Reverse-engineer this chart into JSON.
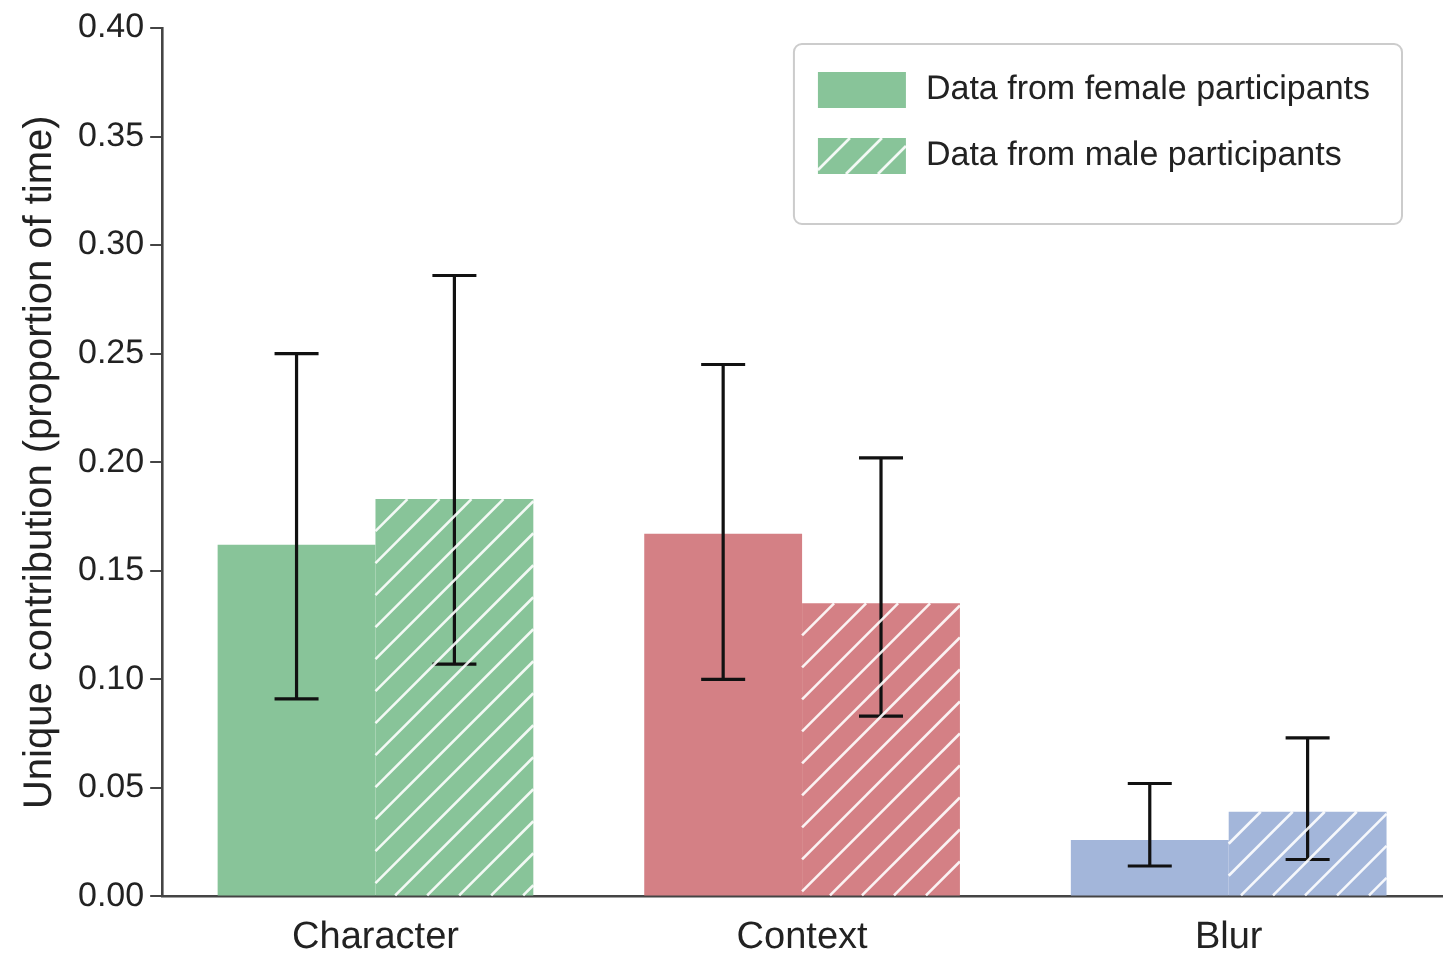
{
  "chart_data": {
    "type": "bar",
    "ylabel": "Unique contribution (proportion of time)",
    "categories": [
      "Character",
      "Context",
      "Blur"
    ],
    "series": [
      {
        "name": "Data from female participants",
        "color": "#88c499",
        "colors": [
          "#88c499",
          "#d48085",
          "#a3b6da"
        ],
        "values": [
          0.162,
          0.167,
          0.026
        ],
        "errors": [
          [
            0.091,
            0.25
          ],
          [
            0.1,
            0.245
          ],
          [
            0.014,
            0.052
          ]
        ]
      },
      {
        "name": "Data from male participants",
        "color": "#88c499",
        "colors": [
          "#88c499",
          "#d48085",
          "#a3b6da"
        ],
        "values": [
          0.183,
          0.135,
          0.039
        ],
        "errors": [
          [
            0.107,
            0.286
          ],
          [
            0.083,
            0.202
          ],
          [
            0.017,
            0.073
          ]
        ]
      }
    ],
    "ylim": [
      0,
      0.4
    ],
    "yticks": [
      {
        "value": 0,
        "label": "0.00"
      },
      {
        "value": 0.05,
        "label": "0.05"
      },
      {
        "value": 0.1,
        "label": "0.10"
      },
      {
        "value": 0.15,
        "label": "0.15"
      },
      {
        "value": 0.2,
        "label": "0.20"
      },
      {
        "value": 0.25,
        "label": "0.25"
      },
      {
        "value": 0.3,
        "label": "0.30"
      },
      {
        "value": 0.35,
        "label": "0.35"
      },
      {
        "value": 0.4,
        "label": "0.40"
      }
    ],
    "grid": false,
    "legend": "top right"
  }
}
